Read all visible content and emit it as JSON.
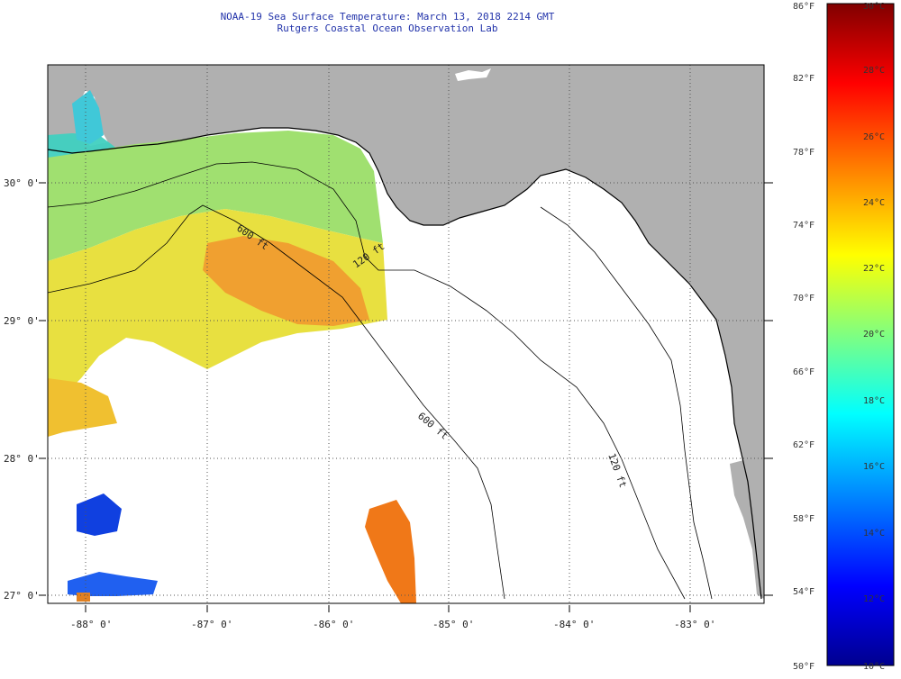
{
  "title": "NOAA-19 Sea Surface Temperature:  March 13, 2018 2214 GMT",
  "subtitle": "Rutgers Coastal Ocean Observation Lab",
  "lat_labels": [
    "30° 0'",
    "29° 0'",
    "28° 0'",
    "27° 0'"
  ],
  "lon_labels": [
    "-88° 0'",
    "-87° 0'",
    "-86° 0'",
    "-85° 0'",
    "-84° 0'",
    "-83° 0'"
  ],
  "contour_labels": [
    "120 ft",
    "600 ft",
    "600 ft",
    "120 ft"
  ],
  "colorbar": {
    "fahrenheit": [
      "86°F",
      "82°F",
      "78°F",
      "74°F",
      "70°F",
      "66°F",
      "62°F",
      "58°F",
      "54°F",
      "50°F"
    ],
    "celsius": [
      "30°C",
      "28°C",
      "26°C",
      "24°C",
      "22°C",
      "20°C",
      "18°C",
      "16°C",
      "14°C",
      "12°C",
      "10°C"
    ],
    "gradient": [
      "#00008f",
      "#0000ff",
      "#0080ff",
      "#00ffff",
      "#80ff80",
      "#ffff00",
      "#ff8000",
      "#ff0000",
      "#800000"
    ]
  },
  "colors": {
    "land": "#b0b0b0",
    "cool_water": "#40d0c0",
    "mid_water": "#a8e060",
    "warm_water": "#f0c020",
    "hot_water": "#f07810"
  }
}
